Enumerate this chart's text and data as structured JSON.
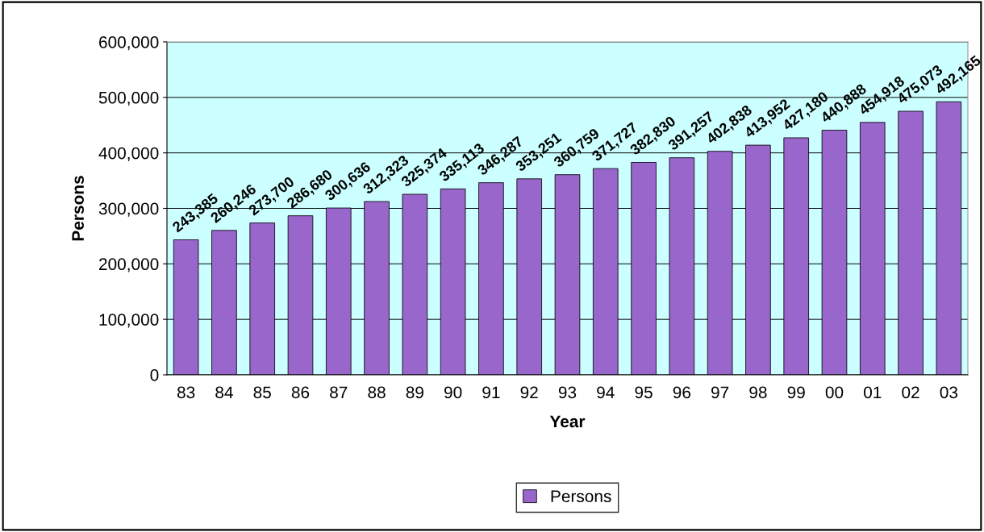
{
  "chart_data": {
    "type": "bar",
    "xlabel": "Year",
    "ylabel": "Persons",
    "categories": [
      "83",
      "84",
      "85",
      "86",
      "87",
      "88",
      "89",
      "90",
      "91",
      "92",
      "93",
      "94",
      "95",
      "96",
      "97",
      "98",
      "99",
      "00",
      "01",
      "02",
      "03"
    ],
    "series": [
      {
        "name": "Persons",
        "color": "#9966cc",
        "values": [
          243385,
          260246,
          273700,
          286680,
          300636,
          312323,
          325374,
          335113,
          346287,
          353251,
          360759,
          371727,
          382830,
          391257,
          402838,
          413952,
          427180,
          440888,
          454918,
          475073,
          492165
        ],
        "value_labels": [
          "243,385",
          "260,246",
          "273,700",
          "286,680",
          "300,636",
          "312,323",
          "325,374",
          "335,113",
          "346,287",
          "353,251",
          "360,759",
          "371,727",
          "382,830",
          "391,257",
          "402,838",
          "413,952",
          "427,180",
          "440,888",
          "454,918",
          "475,073",
          "492,165"
        ]
      }
    ],
    "ylim": [
      0,
      600000
    ],
    "yticks": [
      {
        "value": 0,
        "label": "0"
      },
      {
        "value": 100000,
        "label": "100,000"
      },
      {
        "value": 200000,
        "label": "200,000"
      },
      {
        "value": 300000,
        "label": "300,000"
      },
      {
        "value": 400000,
        "label": "400,000"
      },
      {
        "value": 500000,
        "label": "500,000"
      },
      {
        "value": 600000,
        "label": "600,000"
      }
    ],
    "grid": "y",
    "legend": "bottom"
  }
}
